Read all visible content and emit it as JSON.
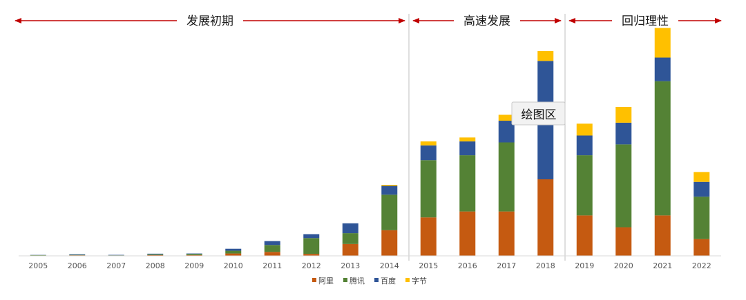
{
  "chart_data": {
    "type": "bar",
    "stacked": true,
    "categories": [
      "2005",
      "2006",
      "2007",
      "2008",
      "2009",
      "2010",
      "2011",
      "2012",
      "2013",
      "2014",
      "2015",
      "2016",
      "2017",
      "2018",
      "2019",
      "2020",
      "2021",
      "2022"
    ],
    "series": [
      {
        "name": "阿里",
        "color": "#c55a11",
        "values": [
          0.2,
          0.3,
          0.2,
          0.4,
          0.4,
          1.2,
          2.0,
          1.0,
          6.0,
          13.0,
          19.5,
          22.5,
          22.5,
          38.8,
          20.5,
          14.5,
          20.5,
          8.5
        ]
      },
      {
        "name": "腾讯",
        "color": "#548235",
        "values": [
          0.2,
          0.2,
          0.1,
          0.4,
          0.6,
          1.4,
          3.5,
          8.0,
          5.5,
          18.0,
          29.0,
          28.5,
          35.0,
          0.0,
          30.5,
          42.0,
          68.0,
          21.5
        ]
      },
      {
        "name": "百度",
        "color": "#2f5597",
        "values": [
          0.1,
          0.3,
          0.2,
          0.3,
          0.2,
          1.0,
          2.0,
          2.0,
          5.0,
          4.5,
          7.5,
          7.0,
          11.0,
          60.0,
          10.0,
          11.0,
          12.0,
          7.5
        ]
      },
      {
        "name": "字节",
        "color": "#ffc000",
        "values": [
          0,
          0,
          0,
          0,
          0,
          0,
          0,
          0,
          0,
          0.5,
          2.0,
          2.0,
          3.0,
          5.0,
          6.0,
          8.0,
          15.0,
          5.0
        ]
      }
    ],
    "ylim": [
      0,
      115
    ],
    "grid": false,
    "legend_position": "bottom",
    "xlabel": "",
    "ylabel": ""
  },
  "phases": [
    {
      "label": "发展初期",
      "start_category": "2005",
      "end_category": "2014"
    },
    {
      "label": "高速发展",
      "start_category": "2015",
      "end_category": "2018"
    },
    {
      "label": "回归理性",
      "start_category": "2019",
      "end_category": "2022"
    }
  ],
  "annotation_color": "#c00000",
  "tooltip": {
    "text": "绘图区"
  }
}
